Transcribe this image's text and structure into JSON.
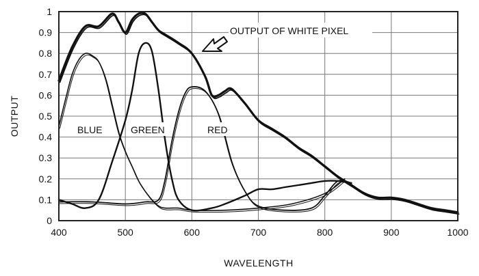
{
  "chart_data": {
    "type": "line",
    "xlabel": "WAVELENGTH",
    "ylabel": "OUTPUT",
    "xlim": [
      400,
      1000
    ],
    "ylim": [
      0,
      1
    ],
    "xticks": [
      "400",
      "500",
      "600",
      "700",
      "800",
      "900",
      "1000"
    ],
    "yticks": [
      "0",
      "0.1",
      "0.2",
      "0.3",
      "0.4",
      "0.5",
      "0.6",
      "0.7",
      "0.8",
      "0.9",
      "1"
    ],
    "grid": true,
    "annotations": {
      "white": "OUTPUT OF WHITE PIXEL",
      "blue": "BLUE",
      "green": "GREEN",
      "red": "RED"
    },
    "series": [
      {
        "name": "OUTPUT OF WHITE PIXEL",
        "x": [
          400,
          420,
          440,
          460,
          480,
          490,
          500,
          510,
          520,
          530,
          540,
          550,
          560,
          580,
          600,
          620,
          630,
          640,
          650,
          660,
          680,
          700,
          720,
          740,
          760,
          780,
          800,
          820,
          840,
          860,
          880,
          900,
          920,
          940,
          960,
          980,
          1000
        ],
        "y": [
          0.67,
          0.83,
          0.93,
          0.93,
          0.99,
          0.95,
          0.9,
          0.96,
          0.99,
          0.99,
          0.95,
          0.91,
          0.89,
          0.85,
          0.8,
          0.69,
          0.6,
          0.6,
          0.62,
          0.63,
          0.56,
          0.48,
          0.44,
          0.4,
          0.35,
          0.31,
          0.26,
          0.21,
          0.17,
          0.13,
          0.11,
          0.11,
          0.1,
          0.08,
          0.06,
          0.05,
          0.04
        ]
      },
      {
        "name": "BLUE",
        "x": [
          400,
          410,
          420,
          430,
          440,
          450,
          460,
          470,
          480,
          490,
          500,
          510,
          520,
          530,
          540,
          550,
          560,
          580,
          600,
          650,
          700,
          750,
          800,
          830
        ],
        "y": [
          0.45,
          0.58,
          0.7,
          0.77,
          0.8,
          0.79,
          0.76,
          0.68,
          0.55,
          0.42,
          0.33,
          0.26,
          0.19,
          0.14,
          0.1,
          0.07,
          0.06,
          0.06,
          0.05,
          0.05,
          0.06,
          0.08,
          0.13,
          0.2
        ]
      },
      {
        "name": "GREEN",
        "x": [
          400,
          420,
          440,
          460,
          480,
          500,
          510,
          520,
          530,
          540,
          550,
          560,
          570,
          580,
          600,
          630,
          650,
          680,
          700,
          720,
          740,
          760,
          780,
          800,
          820,
          840
        ],
        "y": [
          0.1,
          0.08,
          0.06,
          0.1,
          0.28,
          0.48,
          0.62,
          0.8,
          0.85,
          0.81,
          0.62,
          0.38,
          0.2,
          0.1,
          0.05,
          0.06,
          0.08,
          0.12,
          0.15,
          0.15,
          0.16,
          0.17,
          0.18,
          0.19,
          0.19,
          0.18
        ]
      },
      {
        "name": "RED",
        "x": [
          400,
          450,
          500,
          530,
          550,
          560,
          570,
          580,
          590,
          600,
          620,
          640,
          660,
          680,
          700,
          740,
          780,
          800,
          820,
          840
        ],
        "y": [
          0.09,
          0.09,
          0.08,
          0.09,
          0.1,
          0.2,
          0.38,
          0.52,
          0.61,
          0.64,
          0.62,
          0.51,
          0.28,
          0.14,
          0.07,
          0.05,
          0.06,
          0.12,
          0.19,
          0.18
        ]
      }
    ]
  }
}
